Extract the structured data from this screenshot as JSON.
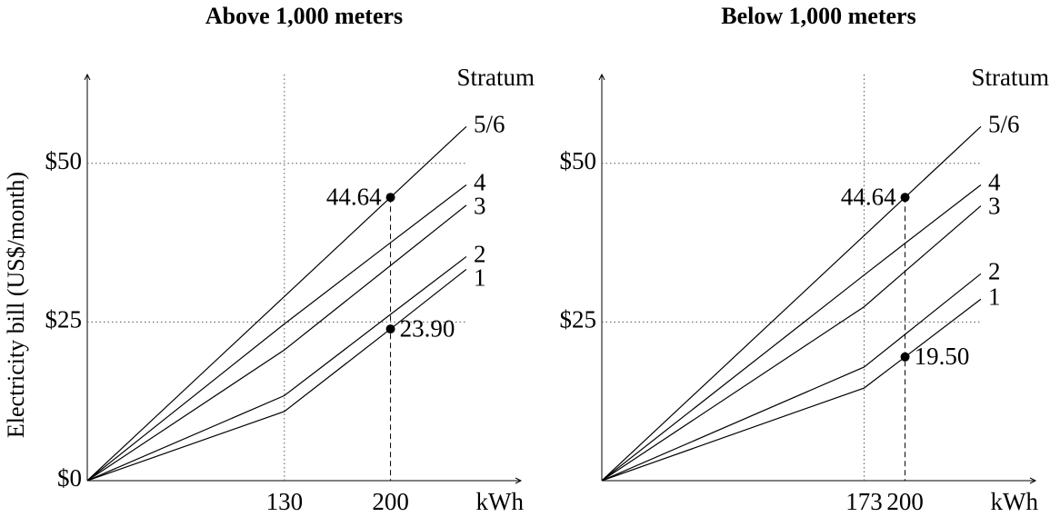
{
  "chart_data": [
    {
      "type": "line",
      "title": "Above 1,000 meters",
      "ylabel": "Electricity bill (US$/month)",
      "xlabel": "kWh",
      "legend_title": "Stratum",
      "x": [
        0,
        130,
        200,
        250
      ],
      "series": [
        {
          "name": "5/6",
          "color": "#000000",
          "values": [
            0,
            29.02,
            44.64,
            55.8
          ]
        },
        {
          "name": "4",
          "color": "#000000",
          "values": [
            0,
            24.7,
            37.5,
            46.6
          ]
        },
        {
          "name": "3",
          "color": "#000000",
          "values": [
            0,
            20.6,
            33.9,
            43.4
          ]
        },
        {
          "name": "2",
          "color": "#000000",
          "values": [
            0,
            13.4,
            26.2,
            35.3
          ]
        },
        {
          "name": "1",
          "color": "#000000",
          "values": [
            0,
            10.9,
            23.9,
            33.3
          ]
        }
      ],
      "points": [
        {
          "x": 200,
          "y": 44.64,
          "label": "44.64"
        },
        {
          "x": 200,
          "y": 23.9,
          "label": "23.90"
        }
      ],
      "xlim": [
        0,
        286
      ],
      "ylim": [
        0,
        64
      ],
      "xticks": [
        130,
        200
      ],
      "yticks": [
        {
          "value": 0,
          "label": "$0"
        },
        {
          "value": 25,
          "label": "$25"
        },
        {
          "value": 50,
          "label": "$50"
        }
      ],
      "grid": true
    },
    {
      "type": "line",
      "title": "Below 1,000 meters",
      "xlabel": "kWh",
      "legend_title": "Stratum",
      "x": [
        0,
        173,
        200,
        250
      ],
      "series": [
        {
          "name": "5/6",
          "color": "#000000",
          "values": [
            0,
            38.61,
            44.64,
            55.8
          ]
        },
        {
          "name": "4",
          "color": "#000000",
          "values": [
            0,
            32.4,
            37.4,
            46.6
          ]
        },
        {
          "name": "3",
          "color": "#000000",
          "values": [
            0,
            27.4,
            33.0,
            43.3
          ]
        },
        {
          "name": "2",
          "color": "#000000",
          "values": [
            0,
            17.9,
            23.05,
            32.6
          ]
        },
        {
          "name": "1",
          "color": "#000000",
          "values": [
            0,
            14.6,
            19.5,
            28.6
          ]
        }
      ],
      "points": [
        {
          "x": 200,
          "y": 44.64,
          "label": "44.64"
        },
        {
          "x": 200,
          "y": 19.5,
          "label": "19.50"
        }
      ],
      "xlim": [
        0,
        286
      ],
      "ylim": [
        0,
        64
      ],
      "xticks": [
        173,
        200
      ],
      "yticks": [
        {
          "value": 25,
          "label": "$25"
        },
        {
          "value": 50,
          "label": "$50"
        }
      ],
      "grid": true
    }
  ]
}
